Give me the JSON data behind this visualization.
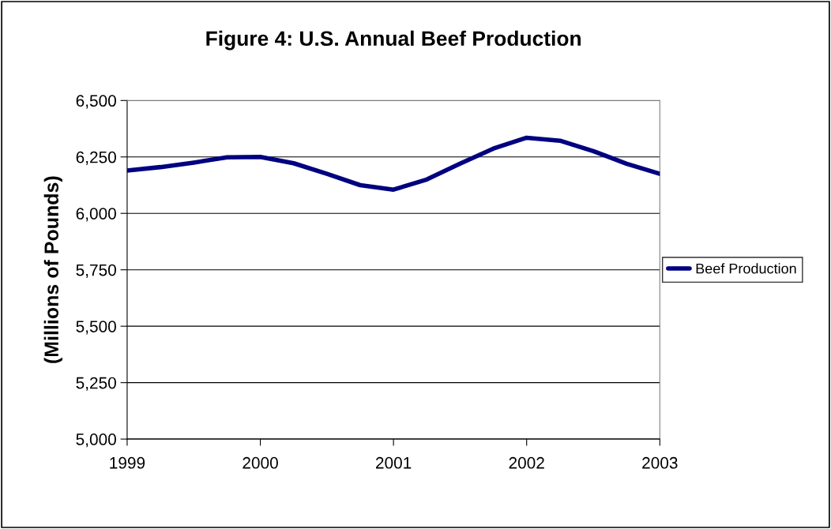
{
  "chart_data": {
    "type": "line",
    "title": "Figure 4: U.S. Annual Beef Production",
    "ylabel": "(Millions of Pounds)",
    "series": [
      {
        "name": "Beef Production",
        "color": "#000080",
        "x": [
          1999,
          1999.25,
          1999.5,
          1999.75,
          2000,
          2000.25,
          2000.5,
          2000.75,
          2001,
          2001.25,
          2001.5,
          2001.75,
          2002,
          2002.25,
          2002.5,
          2002.75,
          2003
        ],
        "values": [
          6190,
          6205,
          6225,
          6248,
          6250,
          6222,
          6175,
          6125,
          6105,
          6150,
          6220,
          6287,
          6335,
          6322,
          6276,
          6220,
          6175
        ]
      }
    ],
    "xlim": [
      1999,
      2003
    ],
    "xticks": [
      1999,
      2000,
      2001,
      2002,
      2003
    ],
    "ylim": [
      5000,
      6500
    ],
    "yticks": [
      {
        "value": 5000,
        "label": "5,000"
      },
      {
        "value": 5250,
        "label": "5,250"
      },
      {
        "value": 5500,
        "label": "5,500"
      },
      {
        "value": 5750,
        "label": "5,750"
      },
      {
        "value": 6000,
        "label": "6,000"
      },
      {
        "value": 6250,
        "label": "6,250"
      },
      {
        "value": 6500,
        "label": "6,500"
      }
    ],
    "grid": "y",
    "legend": "right",
    "marker": "none",
    "line_style": "solid"
  }
}
